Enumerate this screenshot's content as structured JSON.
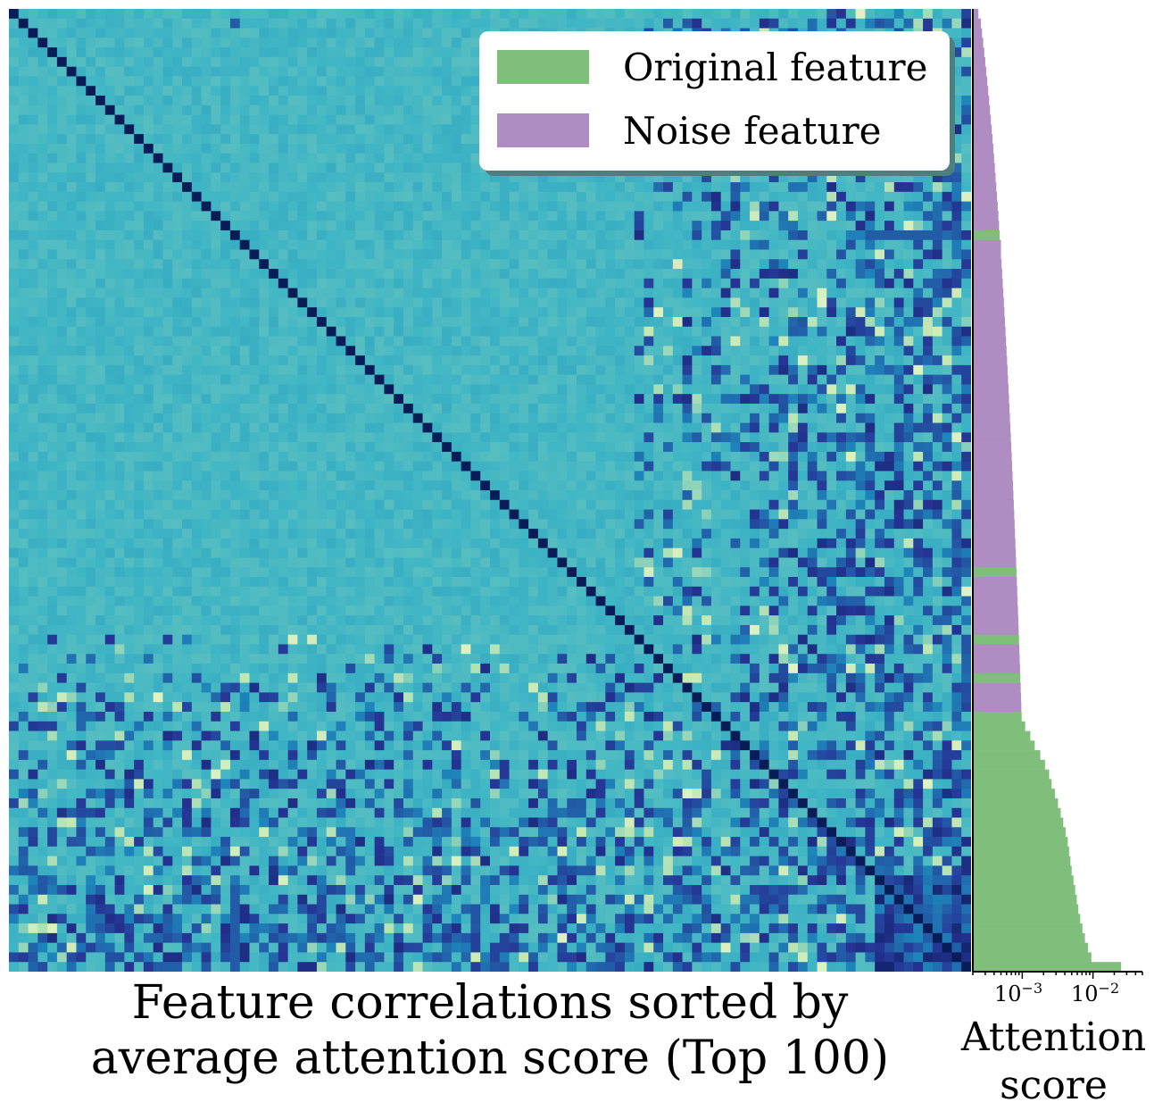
{
  "chart_data": [
    {
      "type": "heatmap",
      "n_features": 100,
      "title_lines": [
        "Feature correlations sorted by",
        "average attention score (Top 100)"
      ],
      "legend": [
        {
          "label": "Original feature",
          "color": "#7fbf7b"
        },
        {
          "label": "Noise feature",
          "color": "#af8dc3"
        }
      ],
      "colormap": [
        "#ffffd9",
        "#c7e9b4",
        "#7fcdbb",
        "#41b6c4",
        "#1d91c0",
        "#225ea8",
        "#253494",
        "#081d58"
      ],
      "strong_correlation_block": {
        "from_index": 90,
        "to_index": 99
      }
    },
    {
      "type": "bar",
      "orientation": "horizontal",
      "xlabel_lines": [
        "Attention",
        "score"
      ],
      "xscale": "log",
      "xlim": [
        0.0002,
        0.05
      ],
      "xticks": [
        {
          "label_base": "10",
          "label_exp": "−3",
          "value": 0.001
        },
        {
          "label_base": "10",
          "label_exp": "−2",
          "value": 0.01
        }
      ],
      "colors": {
        "original": "#7fbf7b",
        "noise": "#af8dc3"
      },
      "original_feature_ranks": [
        23,
        58,
        65,
        69,
        73,
        74,
        75,
        76,
        77,
        78,
        79,
        80,
        81,
        82,
        83,
        84,
        85,
        86,
        87,
        88,
        89,
        90,
        91,
        92,
        93,
        94,
        95,
        96,
        97,
        98,
        99
      ],
      "values": [
        0.00024,
        0.00026,
        0.00027,
        0.00028,
        0.00029,
        0.0003,
        0.00031,
        0.00032,
        0.00033,
        0.00034,
        0.00035,
        0.00036,
        0.00037,
        0.00038,
        0.00039,
        0.0004,
        0.00041,
        0.00042,
        0.00043,
        0.00044,
        0.00045,
        0.00046,
        0.00047,
        0.00048,
        0.0005,
        0.0005,
        0.00051,
        0.00052,
        0.00053,
        0.00054,
        0.00055,
        0.00056,
        0.00057,
        0.00058,
        0.00059,
        0.0006,
        0.00061,
        0.00062,
        0.00063,
        0.00064,
        0.00065,
        0.00066,
        0.00067,
        0.00068,
        0.00069,
        0.0007,
        0.00071,
        0.00072,
        0.00073,
        0.00074,
        0.00075,
        0.00076,
        0.00077,
        0.00078,
        0.00079,
        0.0008,
        0.00081,
        0.00082,
        0.00083,
        0.00084,
        0.00085,
        0.00086,
        0.00087,
        0.00088,
        0.00089,
        0.0009,
        0.00091,
        0.00092,
        0.00093,
        0.00094,
        0.00095,
        0.00096,
        0.00097,
        0.00098,
        0.0011,
        0.0013,
        0.0015,
        0.0018,
        0.0021,
        0.0024,
        0.0026,
        0.0029,
        0.0032,
        0.0035,
        0.0038,
        0.0041,
        0.0044,
        0.0046,
        0.0048,
        0.005,
        0.0053,
        0.0056,
        0.0059,
        0.0062,
        0.0066,
        0.0071,
        0.0077,
        0.0085,
        0.0095,
        0.025
      ]
    }
  ]
}
